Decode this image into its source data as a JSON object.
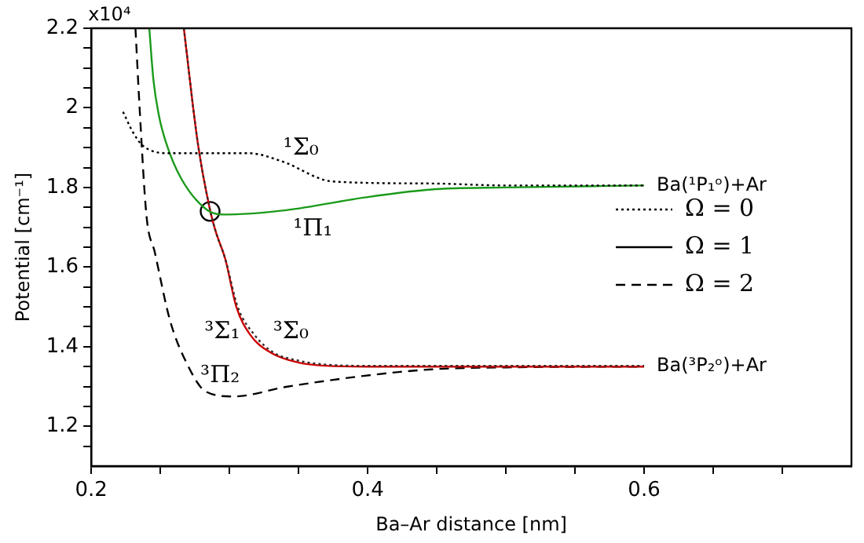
{
  "chart_data": {
    "type": "line",
    "xlabel": "Ba–Ar distance [nm]",
    "ylabel": "Potential [cm⁻¹]",
    "xlim": [
      0.2,
      0.75
    ],
    "ylim": [
      1.1,
      2.2
    ],
    "xticks": [
      0.2,
      {
        "value": 0.25,
        "label": null
      },
      {
        "value": 0.3,
        "label": null
      },
      {
        "value": 0.35,
        "label": null
      },
      0.4,
      {
        "value": 0.45,
        "label": null
      },
      {
        "value": 0.5,
        "label": null
      },
      {
        "value": 0.55,
        "label": null
      },
      0.6,
      {
        "value": 0.65,
        "label": null
      },
      {
        "value": 0.7,
        "label": null
      }
    ],
    "yticks": [
      {
        "value": 1.15,
        "label": null
      },
      1.2,
      {
        "value": 1.25,
        "label": null
      },
      {
        "value": 1.3,
        "label": null
      },
      {
        "value": 1.35,
        "label": null
      },
      1.4,
      {
        "value": 1.45,
        "label": null
      },
      {
        "value": 1.5,
        "label": null
      },
      {
        "value": 1.55,
        "label": null
      },
      1.6,
      {
        "value": 1.65,
        "label": null
      },
      {
        "value": 1.7,
        "label": null
      },
      {
        "value": 1.75,
        "label": null
      },
      1.8,
      {
        "value": 1.85,
        "label": null
      },
      {
        "value": 1.9,
        "label": null
      },
      {
        "value": 1.95,
        "label": null
      },
      2.0,
      {
        "value": 2.05,
        "label": null
      },
      {
        "value": 2.1,
        "label": null
      },
      {
        "value": 2.15,
        "label": null
      },
      2.2
    ],
    "grid": false,
    "series": [
      {
        "name": "¹Σ₀",
        "color": "#000000",
        "line_style": "dotted",
        "x": [
          0.223,
          0.23,
          0.237,
          0.257,
          0.314,
          0.337,
          0.375,
          0.446,
          0.5,
          0.6
        ],
        "values": [
          1.99,
          1.94,
          1.906,
          1.886,
          1.886,
          1.867,
          1.815,
          1.81,
          1.805,
          1.805
        ]
      },
      {
        "name": "¹Π₁",
        "color": "#1a9a1a",
        "line_style": "solid",
        "x": [
          0.242,
          0.245,
          0.249,
          0.254,
          0.265,
          0.284,
          0.295,
          0.341,
          0.398,
          0.446,
          0.5,
          0.6
        ],
        "values": [
          2.2,
          2.07,
          1.98,
          1.914,
          1.823,
          1.743,
          1.732,
          1.743,
          1.775,
          1.795,
          1.8,
          1.805
        ]
      },
      {
        "name": "³Σ₀",
        "color": "#3a2a2a",
        "line_style": "dotted",
        "x": [
          0.267,
          0.277,
          0.286,
          0.29,
          0.297,
          0.306,
          0.318,
          0.332,
          0.35,
          0.37,
          0.4,
          0.6
        ],
        "values": [
          2.2,
          1.914,
          1.743,
          1.69,
          1.62,
          1.5,
          1.43,
          1.385,
          1.365,
          1.355,
          1.352,
          1.352
        ]
      },
      {
        "name": "³Σ₁",
        "color": "#cc0000",
        "line_style": "solid",
        "x": [
          0.267,
          0.277,
          0.286,
          0.29,
          0.297,
          0.305,
          0.315,
          0.33,
          0.35,
          0.37,
          0.4,
          0.6
        ],
        "values": [
          2.2,
          1.914,
          1.743,
          1.69,
          1.62,
          1.5,
          1.43,
          1.385,
          1.36,
          1.352,
          1.35,
          1.35
        ]
      },
      {
        "name": "³Π₂",
        "color": "#000000",
        "line_style": "dashed",
        "x": [
          0.232,
          0.235,
          0.24,
          0.246,
          0.257,
          0.269,
          0.283,
          0.303,
          0.341,
          0.398,
          0.446,
          0.5,
          0.6
        ],
        "values": [
          2.2,
          2.0,
          1.728,
          1.637,
          1.466,
          1.359,
          1.287,
          1.275,
          1.299,
          1.327,
          1.343,
          1.348,
          1.35
        ]
      },
      {
        "type": "scatter",
        "marker": "circle",
        "color": "#000000",
        "x": [
          0.286
        ],
        "values": [
          1.74
        ]
      }
    ],
    "annotations": [
      "x10⁴",
      "Ω = 0",
      "Ω = 1",
      "Ω = 2",
      {
        "text": "Ba(¹P₁ᵒ)+Ar",
        "x": 0.6,
        "y": 1.805
      },
      {
        "text": "Ba(³P₂ᵒ)+Ar",
        "x": 0.6,
        "y": 1.35
      }
    ]
  }
}
